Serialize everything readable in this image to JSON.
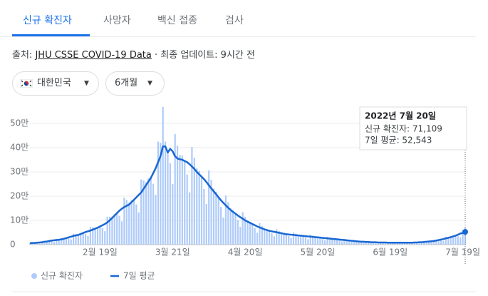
{
  "tabs": [
    "신규 확진자",
    "사망자",
    "백신 접종",
    "검사"
  ],
  "source": {
    "prefix": "출처:",
    "link": "JHU CSSE COVID-19 Data",
    "suffix": "· 최종 업데이트: 9시간 전"
  },
  "filters": [
    "대한민국",
    "6개월"
  ],
  "chart_data": {
    "type": "bar",
    "categories": [
      null,
      null,
      null,
      null,
      null,
      null,
      null,
      null,
      null,
      null,
      null,
      null,
      null,
      null,
      null,
      null,
      null,
      null,
      null,
      null,
      null,
      null,
      null,
      null,
      null,
      null,
      null,
      null,
      null,
      "2월 19일",
      null,
      null,
      null,
      null,
      null,
      null,
      null,
      null,
      null,
      null,
      null,
      null,
      null,
      null,
      null,
      null,
      null,
      null,
      null,
      null,
      null,
      null,
      null,
      null,
      null,
      null,
      null,
      null,
      null,
      "3월 21일",
      null,
      null,
      null,
      null,
      null,
      null,
      null,
      null,
      null,
      null,
      null,
      null,
      null,
      null,
      null,
      null,
      null,
      null,
      null,
      null,
      null,
      null,
      null,
      null,
      null,
      null,
      null,
      null,
      null,
      "4월 20일",
      null,
      null,
      null,
      null,
      null,
      null,
      null,
      null,
      null,
      null,
      null,
      null,
      null,
      null,
      null,
      null,
      null,
      null,
      null,
      null,
      null,
      null,
      null,
      null,
      null,
      null,
      null,
      null,
      null,
      "5월 20일",
      null,
      null,
      null,
      null,
      null,
      null,
      null,
      null,
      null,
      null,
      null,
      null,
      null,
      null,
      null,
      null,
      null,
      null,
      null,
      null,
      null,
      null,
      null,
      null,
      null,
      null,
      null,
      null,
      null,
      "6월 19일",
      null,
      null,
      null,
      null,
      null,
      null,
      null,
      null,
      null,
      null,
      null,
      null,
      null,
      null,
      null,
      null,
      null,
      null,
      null,
      null,
      null,
      null,
      null,
      null,
      null,
      null,
      null,
      null,
      null,
      "7월 19일",
      null
    ],
    "series": [
      {
        "name": "신규 확진자",
        "type": "bar",
        "color": "#aecbfa",
        "values": [
          6300,
          7000,
          6000,
          5200,
          11300,
          11500,
          12600,
          13700,
          15000,
          14500,
          11700,
          23800,
          23000,
          23100,
          25200,
          27000,
          25500,
          21500,
          45000,
          43700,
          42000,
          46200,
          48000,
          44200,
          35800,
          72500,
          71300,
          69300,
          73500,
          75000,
          68000,
          55300,
          115000,
          115000,
          115500,
          126000,
          130000,
          119000,
          96200,
          193800,
          184000,
          173300,
          183800,
          185000,
          165800,
          133300,
          268800,
          264500,
          257300,
          273000,
          275000,
          250800,
          204800,
          425000,
          419800,
          568000,
          425000,
          380000,
          335800,
          250300,
          456300,
          408300,
          369600,
          367500,
          345000,
          289000,
          215800,
          402500,
          358800,
          315000,
          304500,
          280000,
          229500,
          167700,
          306300,
          266800,
          231000,
          218400,
          195000,
          155600,
          111800,
          202500,
          174800,
          150200,
          141800,
          128000,
          102000,
          73500,
          133800,
          115000,
          99800,
          94500,
          85000,
          68000,
          48800,
          88800,
          77000,
          66200,
          63000,
          57000,
          46800,
          34500,
          63800,
          56400,
          49400,
          47300,
          43000,
          35700,
          26700,
          50000,
          44900,
          39900,
          38900,
          36000,
          29800,
          22100,
          41300,
          36800,
          32600,
          31500,
          29000,
          23800,
          17600,
          32500,
          28800,
          25200,
          24200,
          22000,
          17900,
          13000,
          23800,
          20700,
          17900,
          16800,
          15000,
          11900,
          8500,
          15000,
          13800,
          11600,
          11600,
          10000,
          8500,
          6500,
          11300,
          10400,
          9500,
          9500,
          8000,
          6800,
          5200,
          10000,
          9200,
          8400,
          8400,
          8000,
          6800,
          5200,
          11300,
          10400,
          9500,
          10500,
          10000,
          9400,
          7800,
          16300,
          16100,
          15800,
          17900,
          19000,
          17900,
          15000,
          32500,
          32200,
          32600,
          35700,
          37000,
          34900,
          29900,
          60000,
          71109
        ]
      },
      {
        "name": "7일 평균",
        "type": "line",
        "color": "#1967d2",
        "values": [
          6000,
          7000,
          7000,
          8000,
          9000,
          10000,
          12000,
          13000,
          15000,
          17000,
          18000,
          19000,
          20000,
          22000,
          24000,
          27000,
          30000,
          33000,
          36000,
          38000,
          40000,
          44000,
          48000,
          52000,
          55000,
          58000,
          62000,
          66000,
          70000,
          75000,
          80000,
          85000,
          92000,
          100000,
          110000,
          120000,
          130000,
          140000,
          148000,
          155000,
          160000,
          165000,
          175000,
          185000,
          195000,
          205000,
          215000,
          230000,
          245000,
          260000,
          275000,
          295000,
          315000,
          340000,
          365000,
          405000,
          405000,
          380000,
          395000,
          385000,
          365000,
          355000,
          352000,
          350000,
          345000,
          340000,
          332000,
          322000,
          312000,
          300000,
          290000,
          280000,
          270000,
          258000,
          245000,
          232000,
          220000,
          208000,
          195000,
          183000,
          172000,
          162000,
          152000,
          143000,
          135000,
          128000,
          120000,
          113000,
          107000,
          100000,
          95000,
          90000,
          85000,
          80000,
          75000,
          71000,
          67000,
          63000,
          60000,
          57000,
          55000,
          53000,
          51000,
          49000,
          47000,
          45000,
          43000,
          42000,
          41000,
          40000,
          39000,
          38000,
          37000,
          36000,
          35000,
          34000,
          33000,
          32000,
          31000,
          30000,
          29000,
          28000,
          27000,
          26000,
          25000,
          24000,
          23000,
          22000,
          21000,
          20000,
          19000,
          18000,
          17000,
          16000,
          15000,
          14000,
          13000,
          12000,
          12000,
          11000,
          11000,
          10000,
          10000,
          10000,
          9000,
          9000,
          9000,
          9000,
          8000,
          8000,
          8000,
          8000,
          8000,
          8000,
          8000,
          8000,
          8000,
          8000,
          8000,
          9000,
          9000,
          10000,
          10000,
          11000,
          12000,
          13000,
          14000,
          15000,
          17000,
          19000,
          21000,
          23000,
          26000,
          28000,
          31000,
          34000,
          37000,
          41000,
          46000,
          48000,
          52543
        ]
      }
    ],
    "ylim": [
      0,
      580000
    ],
    "yticks": [
      0,
      {
        "value": 100000,
        "label": "10만"
      },
      {
        "value": 200000,
        "label": "20만"
      },
      {
        "value": 300000,
        "label": "30만"
      },
      {
        "value": 400000,
        "label": "40만"
      },
      {
        "value": 500000,
        "label": "50만"
      }
    ],
    "grid": true,
    "tooltip": {
      "title": "2022년 7월 20일",
      "lines": [
        "신규 확진자: 71,109",
        "7일 평균: 52,543"
      ]
    }
  }
}
